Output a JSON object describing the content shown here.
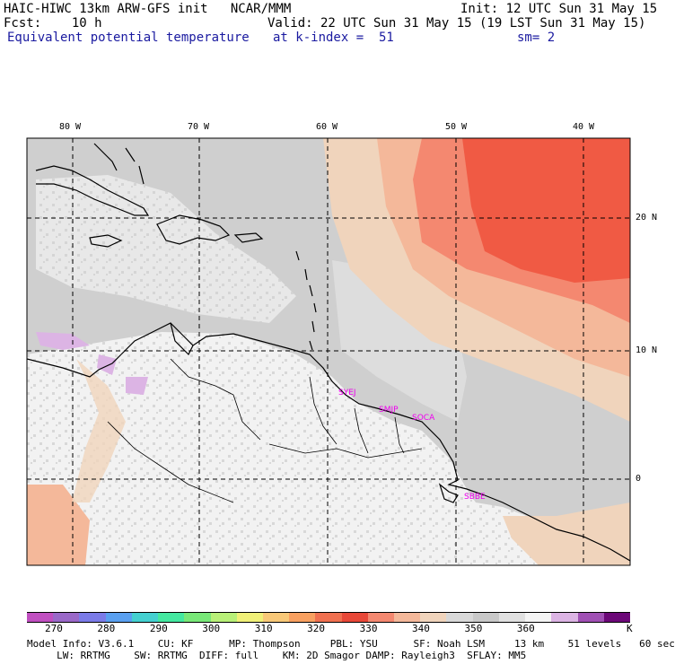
{
  "header": {
    "line1_left": "HAIC-HIWC 13km ARW-GFS init   NCAR/MMM",
    "line1_right": "Init: 12 UTC Sun 31 May 15",
    "line2_left": "Fcst:    10 h",
    "line2_right": "Valid: 22 UTC Sun 31 May 15 (19 LST Sun 31 May 15)",
    "field_name": "Equivalent potential temperature",
    "level": "at k-index =  51",
    "smoothing": "sm= 2"
  },
  "axes": {
    "lon_labels": [
      "80 W",
      "70 W",
      "60 W",
      "50 W",
      "40 W"
    ],
    "lat_labels": [
      "20 N",
      "10 N",
      "0"
    ]
  },
  "stations": [
    "SYEJ",
    "SMJP",
    "SOCA",
    "SBBE"
  ],
  "colorbar": {
    "unit": "K",
    "labels": [
      "270",
      "280",
      "290",
      "300",
      "310",
      "320",
      "330",
      "340",
      "350",
      "360"
    ],
    "colors": [
      "#c04fc0",
      "#9a68c8",
      "#7b7be8",
      "#5aa0f0",
      "#44d0d0",
      "#44e8a0",
      "#78e878",
      "#b8f078",
      "#f0f078",
      "#f8c878",
      "#f8a060",
      "#f07050",
      "#e84838",
      "#f48870",
      "#f4b89a",
      "#f0d4bc",
      "#d8d8d8",
      "#c8c8c8",
      "#e0e0e0",
      "#f4f4f4",
      "#dcb4e4",
      "#a050b4",
      "#6c0878"
    ]
  },
  "footer": {
    "line1": "Model Info: V3.6.1    CU: KF      MP: Thompson     PBL: YSU      SF: Noah LSM     13 km    51 levels   60 sec",
    "line2": "     LW: RRTMG    SW: RRTMG  DIFF: full    KM: 2D Smagor DAMP: Rayleigh3  SFLAY: MM5"
  }
}
